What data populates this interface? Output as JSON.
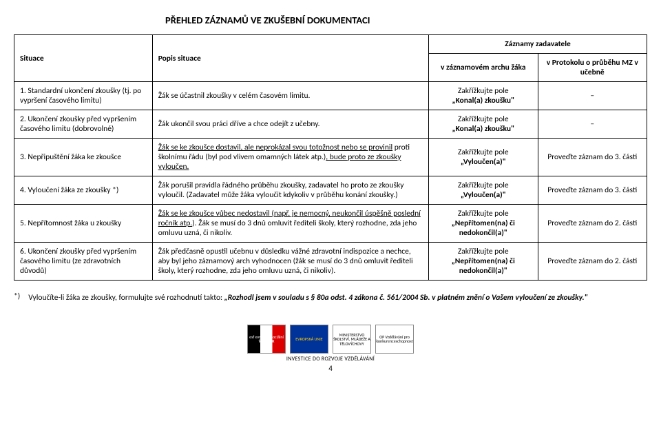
{
  "title": "PŘEHLED ZÁZNAMŮ VE ZKUŠEBNÍ DOKUMENTACI",
  "headers": {
    "situace": "Situace",
    "popis": "Popis situace",
    "zaznamy": "Záznamy zadavatele",
    "sub1": "v záznamovém archu žáka",
    "sub2": "v Protokolu o průběhu MZ v učebně"
  },
  "rows": {
    "r1": {
      "situace": "1. Standardní ukončení zkoušky (tj. po vypršení časového limitu)",
      "popis": "Žák se účastnil zkoušky v celém časovém limitu.",
      "z1a": "Zakřížkujte pole",
      "z1b": "„Konal(a) zkoušku\"",
      "z2": "–"
    },
    "r2": {
      "situace": "2. Ukončení zkoušky před vypršením časového limitu (dobrovolné)",
      "popis": "Žák ukončil svou práci dříve a chce odejít z učebny.",
      "z1a": "Zakřížkujte pole",
      "z1b": "„Konal(a) zkoušku\"",
      "z2": "–"
    },
    "r3": {
      "situace": "3. Nepřipuštění žáka ke zkoušce",
      "popis_u1": "Žák se ke zkoušce dostavil, ale neprokázal svou totožnost nebo se provinil",
      "popis_mid": " proti školnímu řádu (byl pod vlivem omamných látek atp.)",
      "popis_u2": ", bude proto ze zkoušky vyloučen.",
      "z1a": "Zakřížkujte pole",
      "z1b": "„Vyloučen(a)\"",
      "z2": "Proveďte záznam do 3. části"
    },
    "r4": {
      "situace": "4. Vyloučení žáka ze zkoušky *)",
      "popis": "Žák porušil pravidla řádného průběhu zkoušky, zadavatel ho proto ze zkoušky vyloučil. (Zadavatel může žáka vyloučit kdykoliv v průběhu konání zkoušky.)",
      "z1a": "Zakřížkujte pole",
      "z1b": "„Vyloučen(a)\"",
      "z2": "Proveďte záznam do 3. části"
    },
    "r5": {
      "situace": "5. Nepřítomnost žáka u zkoušky",
      "popis_u1": "Žák se ke zkoušce vůbec nedostavil (např.",
      "popis_u2": " je nemocný, neukončil úspěšně poslední ročník atp.",
      "popis_tail": "). Žák se musí do 3 dnů omluvit řediteli školy, který rozhodne, zda jeho omluvu uzná, či nikoliv.",
      "z1a": "Zakřížkujte pole",
      "z1b": "„Nepřítomen(na) či nedokončil(a)\"",
      "z2": "Proveďte záznam do 2. části"
    },
    "r6": {
      "situace": "6. Ukončení zkoušky před vypršením časového limitu (ze zdravotních důvodů)",
      "popis": "Žák předčasně opustil učebnu v důsledku vážné zdravotní indispozice a nechce, aby byl jeho záznamový arch vyhodnocen (žák se musí do 3 dnů omluvit řediteli školy, který rozhodne, zda jeho omluvu uzná, či nikoliv).",
      "z1a": "Zakřížkujte pole",
      "z1b": "„Nepřítomen(na) či nedokončil(a)\"",
      "z2": "Proveďte záznam do 2. části"
    }
  },
  "footnote": {
    "marker": "*)",
    "lead": "Vyloučíte-li žáka ze zkoušky, formulujte své rozhodnutí takto: ",
    "quote": "„Rozhodl jsem v souladu s § 80a odst. 4 zákona č. 561/2004 Sb. v platném znění o Vašem vyloučení ze zkoušky.\""
  },
  "footer": {
    "invest": "INVESTICE DO ROZVOJE VZDĚLÁVÁNÍ",
    "pagenum": "4",
    "logo_esf": "esf evropský sociální fond v ČR",
    "logo_eu": "EVROPSKÁ UNIE",
    "logo_msmt": "MINISTERSTVO ŠKOLSTVÍ, MLÁDEŽE A TĚLOVÝCHOVY",
    "logo_op": "OP Vzdělávání pro konkurenceschopnost"
  },
  "colors": {
    "border": "#000000",
    "background": "#ffffff",
    "text": "#000000"
  }
}
